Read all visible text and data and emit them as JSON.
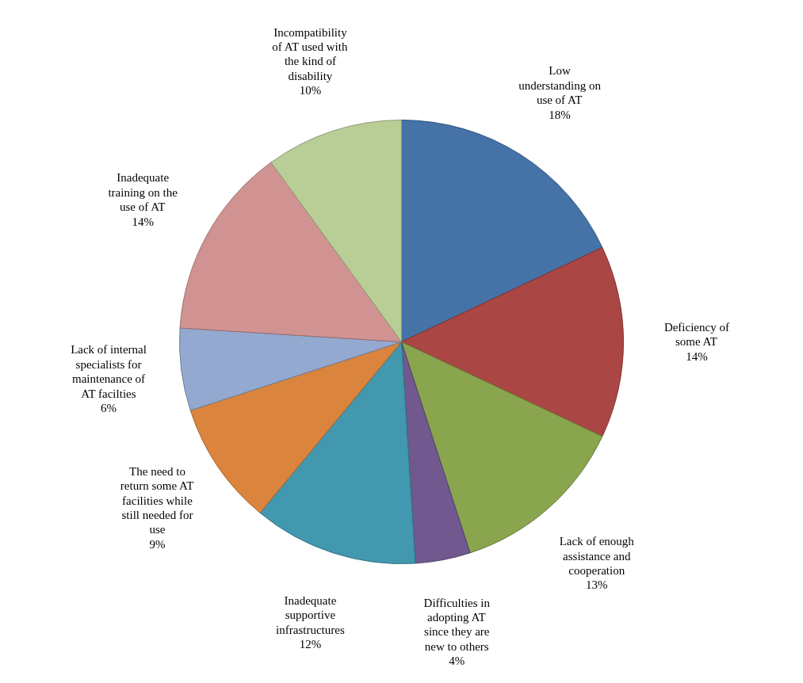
{
  "chart_data": {
    "type": "pie",
    "categories": [
      "Low understanding on use of AT",
      "Deficiency of some AT",
      "Lack of enough assistance and cooperation",
      "Difficulties in adopting AT since they are new to others",
      "Inadequate supportive infrastructures",
      "The need to return some AT facilities while still needed for use",
      "Lack of internal specialists for maintenance of AT facilties",
      "Inadequate training on the use of AT",
      "Incompatibility of AT used with the kind of disability"
    ],
    "values": [
      18,
      14,
      13,
      4,
      12,
      9,
      6,
      14,
      10
    ],
    "value_labels": [
      "18%",
      "14%",
      "13%",
      "4%",
      "12%",
      "9%",
      "6%",
      "14%",
      "10%"
    ],
    "colors": [
      "#4572a7",
      "#aa4643",
      "#89a54e",
      "#71588f",
      "#4198af",
      "#db843d",
      "#93a9cf",
      "#d19392",
      "#b9cd96"
    ]
  }
}
